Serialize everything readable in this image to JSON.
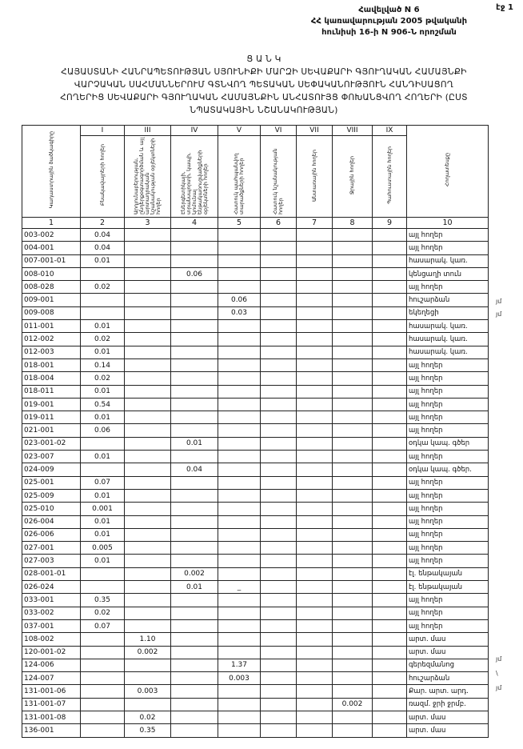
{
  "header": {
    "page_label": "էջ 1",
    "lines": [
      "Հավելված N 6",
      "ՀՀ կառավարության 2005 թվականի",
      "հունիսի 16-ի N 906-Ն որոշման"
    ]
  },
  "title": {
    "heading": "Ց Ա Ն Կ",
    "lines": [
      "ՀԱՅԱՍՏԱՆԻ ՀԱՆՐԱՊԵՏՈՒԹՅԱՆ ՍՅՈՒՆԻՔԻ ՄԱՐԶԻ ՍԵՎԱՔԱՐԻ ԳՅՈՒՂԱԿԱՆ ՀԱՄԱՅՆՔԻ",
      "ՎԱՐՉԱԿԱՆ ՍԱՀՄԱՆՆԵՐՈՒՄ ԳՏՆՎՈՂ ՊԵՏԱԿԱՆ ՍԵՓԱԿԱՆՈՒԹՅՈՒՆ ՀԱՆԴԻՍԱՑՈՂ",
      "ՀՈՂԵՐԻՑ ՍԵՎԱՔԱՐԻ ԳՅՈՒՂԱԿԱՆ ՀԱՄԱՅՆՔԻՆ ԱՆՀԱՏՈՒՅՑ ՓՈԽԱՆՑՎՈՂ ՀՈՂԵՐԻ (ԸՍՏ",
      "ՆՊԱՏԱԿԱՅԻՆ ՆՇԱՆԱԿՈՒԹՅԱՆ)"
    ]
  },
  "table": {
    "roman": [
      "I",
      "III",
      "IV",
      "V",
      "VI",
      "VII",
      "VIII",
      "IX"
    ],
    "headers": [
      "Կադաստրային ծածկագիրը",
      "Բնակավայրերի հողեր",
      "Արդյունաբերության, ընդերքօգտագործման և այլ արտադրական նշանակության օբյեկտների հողեր",
      "Էներգետիկայի, տրանսպորտի, կապի, կոմունալ ենթակառուցվածքների օբյեկտների հողեր",
      "Հատուկ պահպանվող տարածքների հողեր",
      "Հատուկ նշանակության հողեր",
      "Անտառային հողեր",
      "Ջրային հողեր",
      "Պահուստային հողեր",
      "Հողատեսքը"
    ],
    "numbers": [
      "1",
      "2",
      "3",
      "4",
      "5",
      "6",
      "7",
      "8",
      "9",
      "10"
    ],
    "rows": [
      [
        "003-002",
        "0.04",
        "",
        "",
        "",
        "",
        "",
        "",
        "",
        "այլ հողեր"
      ],
      [
        "004-001",
        "0.04",
        "",
        "",
        "",
        "",
        "",
        "",
        "",
        "այլ հողեր"
      ],
      [
        "007-001-01",
        "0.01",
        "",
        "",
        "",
        "",
        "",
        "",
        "",
        "հասարակ. կառ."
      ],
      [
        "008-010",
        "",
        "",
        "0.06",
        "",
        "",
        "",
        "",
        "",
        "կենցաղի տուն"
      ],
      [
        "008-028",
        "0.02",
        "",
        "",
        "",
        "",
        "",
        "",
        "",
        "այլ հողեր"
      ],
      [
        "009-001",
        "",
        "",
        "",
        "0.06",
        "",
        "",
        "",
        "",
        "հուշարձան"
      ],
      [
        "009-008",
        "",
        "",
        "",
        "0.03",
        "",
        "",
        "",
        "",
        "եկեղեցի"
      ],
      [
        "011-001",
        "0.01",
        "",
        "",
        "",
        "",
        "",
        "",
        "",
        "հասարակ. կառ."
      ],
      [
        "012-002",
        "0.02",
        "",
        "",
        "",
        "",
        "",
        "",
        "",
        "հասարակ. կառ."
      ],
      [
        "012-003",
        "0.01",
        "",
        "",
        "",
        "",
        "",
        "",
        "",
        "հասարակ. կառ."
      ],
      [
        "018-001",
        "0.14",
        "",
        "",
        "",
        "",
        "",
        "",
        "",
        "այլ հողեր"
      ],
      [
        "018-004",
        "0.02",
        "",
        "",
        "",
        "",
        "",
        "",
        "",
        "այլ հողեր"
      ],
      [
        "018-011",
        "0.01",
        "",
        "",
        "",
        "",
        "",
        "",
        "",
        "այլ հողեր"
      ],
      [
        "019-001",
        "0.54",
        "",
        "",
        "",
        "",
        "",
        "",
        "",
        "այլ հողեր"
      ],
      [
        "019-011",
        "0.01",
        "",
        "",
        "",
        "",
        "",
        "",
        "",
        "այլ հողեր"
      ],
      [
        "021-001",
        "0.06",
        "",
        "",
        "",
        "",
        "",
        "",
        "",
        "այլ հողեր"
      ],
      [
        "023-001-02",
        "",
        "",
        "0.01",
        "",
        "",
        "",
        "",
        "",
        "օդկա կապ. գծեր"
      ],
      [
        "023-007",
        "0.01",
        "",
        "",
        "",
        "",
        "",
        "",
        "",
        "այլ հողեր"
      ],
      [
        "024-009",
        "",
        "",
        "0.04",
        "",
        "",
        "",
        "",
        "",
        "օդկա կապ. գծեր."
      ],
      [
        "025-001",
        "0.07",
        "",
        "",
        "",
        "",
        "",
        "",
        "",
        "այլ հողեր"
      ],
      [
        "025-009",
        "0.01",
        "",
        "",
        "",
        "",
        "",
        "",
        "",
        "այլ հողեր"
      ],
      [
        "025-010",
        "0.001",
        "",
        "",
        "",
        "",
        "",
        "",
        "",
        "այլ հողեր"
      ],
      [
        "026-004",
        "0.01",
        "",
        "",
        "",
        "",
        "",
        "",
        "",
        "այլ հողեր"
      ],
      [
        "026-006",
        "0.01",
        "",
        "",
        "",
        "",
        "",
        "",
        "",
        "այլ հողեր"
      ],
      [
        "027-001",
        "0.005",
        "",
        "",
        "",
        "",
        "",
        "",
        "",
        "այլ հողեր"
      ],
      [
        "027-003",
        "0.01",
        "",
        "",
        "",
        "",
        "",
        "",
        "",
        "այլ հողեր"
      ],
      [
        "028-001-01",
        "",
        "",
        "0.002",
        "",
        "",
        "",
        "",
        "",
        "էլ. ենթակայան"
      ],
      [
        "026-024",
        "",
        "",
        "0.01",
        "_",
        "",
        "",
        "",
        "",
        "էլ. ենթակայան"
      ],
      [
        "033-001",
        "0.35",
        "",
        "",
        "",
        "",
        "",
        "",
        "",
        "այլ հողեր"
      ],
      [
        "033-002",
        "0.02",
        "",
        "",
        "",
        "",
        "",
        "",
        "",
        "այլ հողեր"
      ],
      [
        "037-001",
        "0.07",
        "",
        "",
        "",
        "",
        "",
        "",
        "",
        "այլ հողեր"
      ],
      [
        "108-002",
        "",
        "1.10",
        "",
        "",
        "",
        "",
        "",
        "",
        "արտ. մաս"
      ],
      [
        "120-001-02",
        "",
        "0.002",
        "",
        "",
        "",
        "",
        "",
        "",
        "արտ. մաս"
      ],
      [
        "124-006",
        "",
        "",
        "",
        "1.37",
        "",
        "",
        "",
        "",
        "գերեզմանոց"
      ],
      [
        "124-007",
        "",
        "",
        "",
        "0.003",
        "",
        "",
        "",
        "",
        "հուշարձան"
      ],
      [
        "131-001-06",
        "",
        "0.003",
        "",
        "",
        "",
        "",
        "",
        "",
        "Քար. արտ. արդ."
      ],
      [
        "131-001-07",
        "",
        "",
        "",
        "",
        "",
        "",
        "0.002",
        "",
        "ռազմ. ջրի ջրմբ."
      ],
      [
        "131-001-08",
        "",
        "0.02",
        "",
        "",
        "",
        "",
        "",
        "",
        "արտ. մաս"
      ],
      [
        "136-001",
        "",
        "0.35",
        "",
        "",
        "",
        "",
        "",
        "",
        "արտ. մաս"
      ]
    ]
  },
  "margin_notes": [
    "յմ",
    "յմ",
    "յմ",
    "\\",
    "յմ"
  ]
}
